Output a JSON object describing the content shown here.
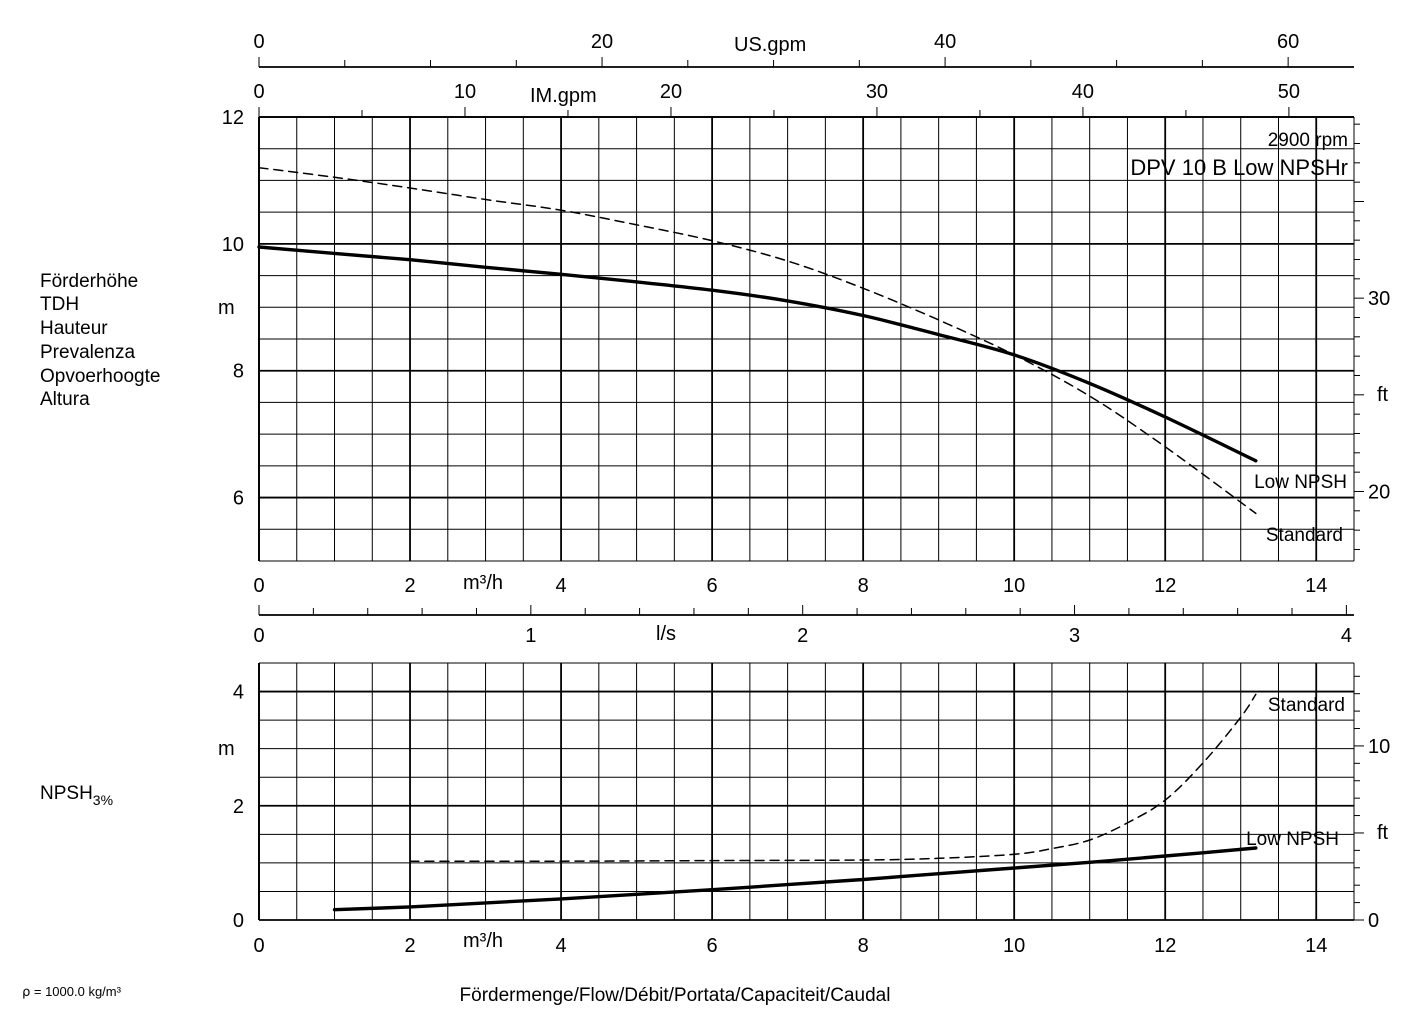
{
  "chart_data": [
    {
      "type": "line",
      "name": "head",
      "title": "DPV 10 B Low NPSHr",
      "subtitle": "2900 rpm",
      "xlabel": "m³/h",
      "ylabel": "m",
      "ylabel_right": "ft",
      "y_caption_lines": [
        "Förderhöhe",
        "TDH",
        "Hauteur",
        "Prevalenza",
        "Opvoerhoogte",
        "Altura"
      ],
      "xlim": [
        0,
        14.5
      ],
      "ylim": [
        5,
        12
      ],
      "x_ticks": [
        0,
        2,
        4,
        6,
        8,
        10,
        12,
        14
      ],
      "y_ticks": [
        6,
        8,
        10,
        12
      ],
      "right_ticks_ft": [
        20,
        30
      ],
      "grid": true,
      "top_axes": [
        {
          "label": "US.gpm",
          "max": 63.84,
          "ticks": [
            0,
            20,
            40,
            60
          ]
        },
        {
          "label": "IM.gpm",
          "max": 53.16,
          "ticks": [
            0,
            10,
            20,
            30,
            40,
            50
          ]
        }
      ],
      "series": [
        {
          "name": "Low NPSH",
          "style": "solid",
          "x": [
            0,
            1,
            2,
            3,
            4,
            5,
            6,
            7,
            8,
            9,
            10,
            11,
            12,
            13.2
          ],
          "y": [
            9.95,
            9.85,
            9.75,
            9.63,
            9.52,
            9.4,
            9.27,
            9.1,
            8.87,
            8.57,
            8.25,
            7.8,
            7.27,
            6.58
          ]
        },
        {
          "name": "Standard",
          "style": "dashed",
          "x": [
            0,
            1,
            2,
            3,
            4,
            5,
            6,
            7,
            8,
            9,
            10,
            11,
            12,
            13.2
          ],
          "y": [
            11.2,
            11.05,
            10.88,
            10.7,
            10.53,
            10.3,
            10.05,
            9.73,
            9.3,
            8.8,
            8.25,
            7.6,
            6.8,
            5.75
          ]
        }
      ]
    },
    {
      "type": "line",
      "name": "npsh",
      "xlabel": "m³/h",
      "ylabel": "m",
      "ylabel_right": "ft",
      "y_caption": "NPSH",
      "y_caption_sub": "3%",
      "xlim": [
        0,
        14.5
      ],
      "ylim": [
        0,
        4.5
      ],
      "x_ticks": [
        0,
        2,
        4,
        6,
        8,
        10,
        12,
        14
      ],
      "y_ticks": [
        0,
        2,
        4
      ],
      "right_ticks_ft": [
        0,
        10
      ],
      "grid": true,
      "series": [
        {
          "name": "Low NPSH",
          "style": "solid",
          "x": [
            1,
            2,
            3,
            4,
            5,
            6,
            7,
            8,
            9,
            10,
            11,
            12,
            13.2
          ],
          "y": [
            0.18,
            0.23,
            0.3,
            0.37,
            0.45,
            0.53,
            0.62,
            0.71,
            0.81,
            0.91,
            1.01,
            1.12,
            1.26
          ]
        },
        {
          "name": "Standard",
          "style": "dashed",
          "x": [
            2,
            4,
            6,
            8,
            9,
            10,
            10.5,
            11,
            11.5,
            12,
            12.5,
            13,
            13.2
          ],
          "y": [
            1.03,
            1.03,
            1.04,
            1.05,
            1.08,
            1.15,
            1.25,
            1.4,
            1.7,
            2.1,
            2.75,
            3.55,
            3.95
          ]
        }
      ]
    }
  ],
  "flow_axis": {
    "label": "l/s",
    "max": 4.028,
    "ticks": [
      0,
      1,
      2,
      3,
      4
    ]
  },
  "footer": {
    "x_caption": "Fördermenge/Flow/Débit/Portata/Capaciteit/Caudal",
    "density_note": "⍴ = 1000.0 kg/m³"
  }
}
